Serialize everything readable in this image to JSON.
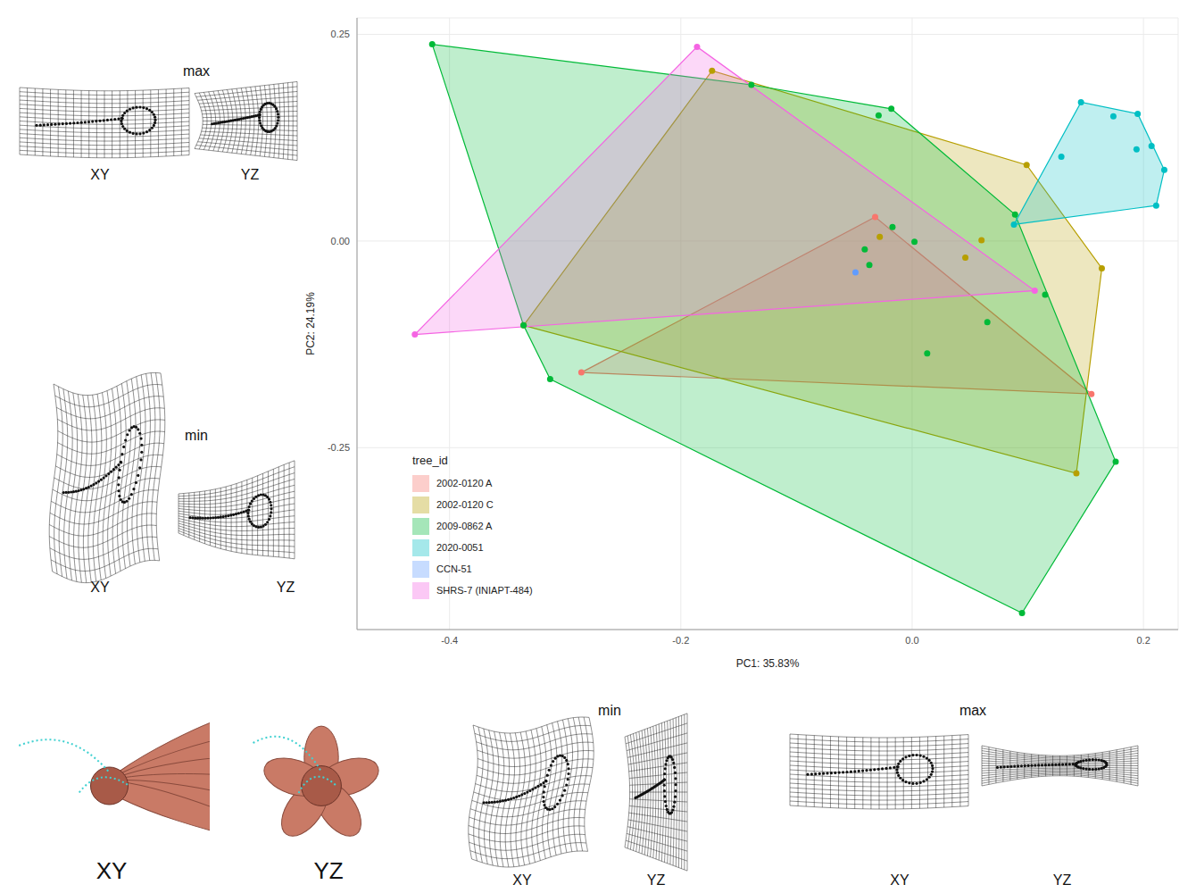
{
  "chart_data": {
    "type": "scatter",
    "x_label": "PC1: 35.83%",
    "y_label": "PC2: 24.19%",
    "legend_title": "tree_id",
    "legend": "bottom-left",
    "grid": true,
    "xlim": [
      -0.48,
      0.23
    ],
    "ylim": [
      -0.47,
      0.27
    ],
    "xticks": [
      -0.4,
      -0.2,
      {
        "value": 0,
        "label": "0.0"
      },
      0.2
    ],
    "yticks": [
      -0.25,
      {
        "value": 0,
        "label": "0.00"
      },
      0.25
    ],
    "series": [
      {
        "name": "2002-0120 A",
        "color": "#F8766D",
        "x": [
          -0.032,
          0.155,
          -0.286
        ],
        "y": [
          0.029,
          -0.185,
          -0.159
        ]
      },
      {
        "name": "2002-0120 C",
        "color": "#B79F00",
        "x": [
          -0.173,
          0.099,
          0.164,
          0.142,
          -0.336,
          -0.028,
          0.06,
          0.046
        ],
        "y": [
          0.206,
          0.092,
          -0.033,
          -0.281,
          -0.102,
          0.005,
          0.001,
          -0.02
        ]
      },
      {
        "name": "2009-0862 A",
        "color": "#00BA38",
        "x": [
          -0.415,
          -0.139,
          -0.029,
          -0.018,
          0.089,
          0.115,
          0.176,
          0.095,
          -0.313,
          -0.336,
          -0.017,
          -0.041,
          -0.037,
          0.002,
          0.065,
          0.013
        ],
        "y": [
          0.238,
          0.189,
          0.152,
          0.16,
          0.032,
          -0.065,
          -0.267,
          -0.45,
          -0.167,
          -0.102,
          0.017,
          -0.01,
          -0.029,
          -0.001,
          -0.098,
          -0.136
        ]
      },
      {
        "name": "2020-0051",
        "color": "#00BFC4",
        "x": [
          0.146,
          0.174,
          0.195,
          0.218,
          0.211,
          0.088,
          0.129,
          0.194,
          0.207
        ],
        "y": [
          0.168,
          0.151,
          0.154,
          0.086,
          0.043,
          0.02,
          0.102,
          0.111,
          0.115
        ]
      },
      {
        "name": "CCN-51",
        "color": "#619CFF",
        "x": [
          -0.049
        ],
        "y": [
          -0.038
        ]
      },
      {
        "name": "SHRS-7 (INIAPT-484)",
        "color": "#F564E3",
        "x": [
          -0.186,
          -0.43,
          0.106
        ],
        "y": [
          0.235,
          -0.113,
          -0.06
        ]
      }
    ]
  },
  "figure_panels": [
    {
      "title": "max",
      "views": [
        "XY",
        "YZ"
      ]
    },
    {
      "title": "min",
      "views": [
        "XY",
        "YZ"
      ]
    },
    {
      "views": [
        "XY",
        "YZ"
      ]
    },
    {
      "title": "min",
      "views": [
        "XY",
        "YZ"
      ]
    },
    {
      "title": "max",
      "views": [
        "XY",
        "YZ"
      ]
    }
  ]
}
